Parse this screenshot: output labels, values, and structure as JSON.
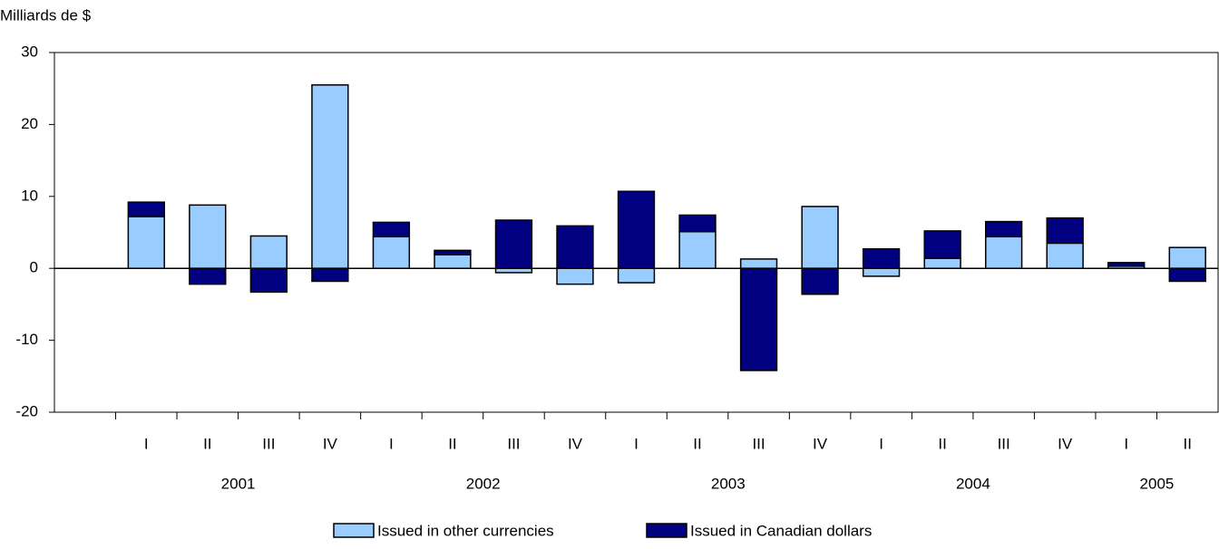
{
  "chart_data": {
    "type": "stacked-bar",
    "y_label": "Milliards de $",
    "groups": [
      {
        "label": "2001",
        "categories": [
          "I",
          "II",
          "III",
          "IV"
        ]
      },
      {
        "label": "2002",
        "categories": [
          "I",
          "II",
          "III",
          "IV"
        ]
      },
      {
        "label": "2003",
        "categories": [
          "I",
          "II",
          "III",
          "IV"
        ]
      },
      {
        "label": "2004",
        "categories": [
          "I",
          "II",
          "III",
          "IV"
        ]
      },
      {
        "label": "2005",
        "categories": [
          "I",
          "II"
        ]
      }
    ],
    "series": [
      {
        "name": "Issued in other currencies",
        "color": "#99ccff",
        "values": [
          7.2,
          8.8,
          4.5,
          25.5,
          4.4,
          1.9,
          -0.6,
          -2.2,
          -2.0,
          5.1,
          1.3,
          8.6,
          -1.1,
          1.4,
          4.4,
          3.5,
          0.3,
          2.9
        ]
      },
      {
        "name": "Issued in Canadian dollars",
        "color": "#000080",
        "values": [
          2.0,
          -2.2,
          -3.3,
          -1.8,
          2.0,
          0.6,
          6.7,
          5.9,
          10.7,
          2.3,
          -14.2,
          -3.6,
          2.7,
          3.8,
          2.1,
          3.5,
          0.5,
          -1.8
        ]
      }
    ],
    "ylim": [
      -20,
      30
    ],
    "yticks": [
      -20,
      -10,
      0,
      10,
      20,
      30
    ],
    "legend": "bottom"
  }
}
